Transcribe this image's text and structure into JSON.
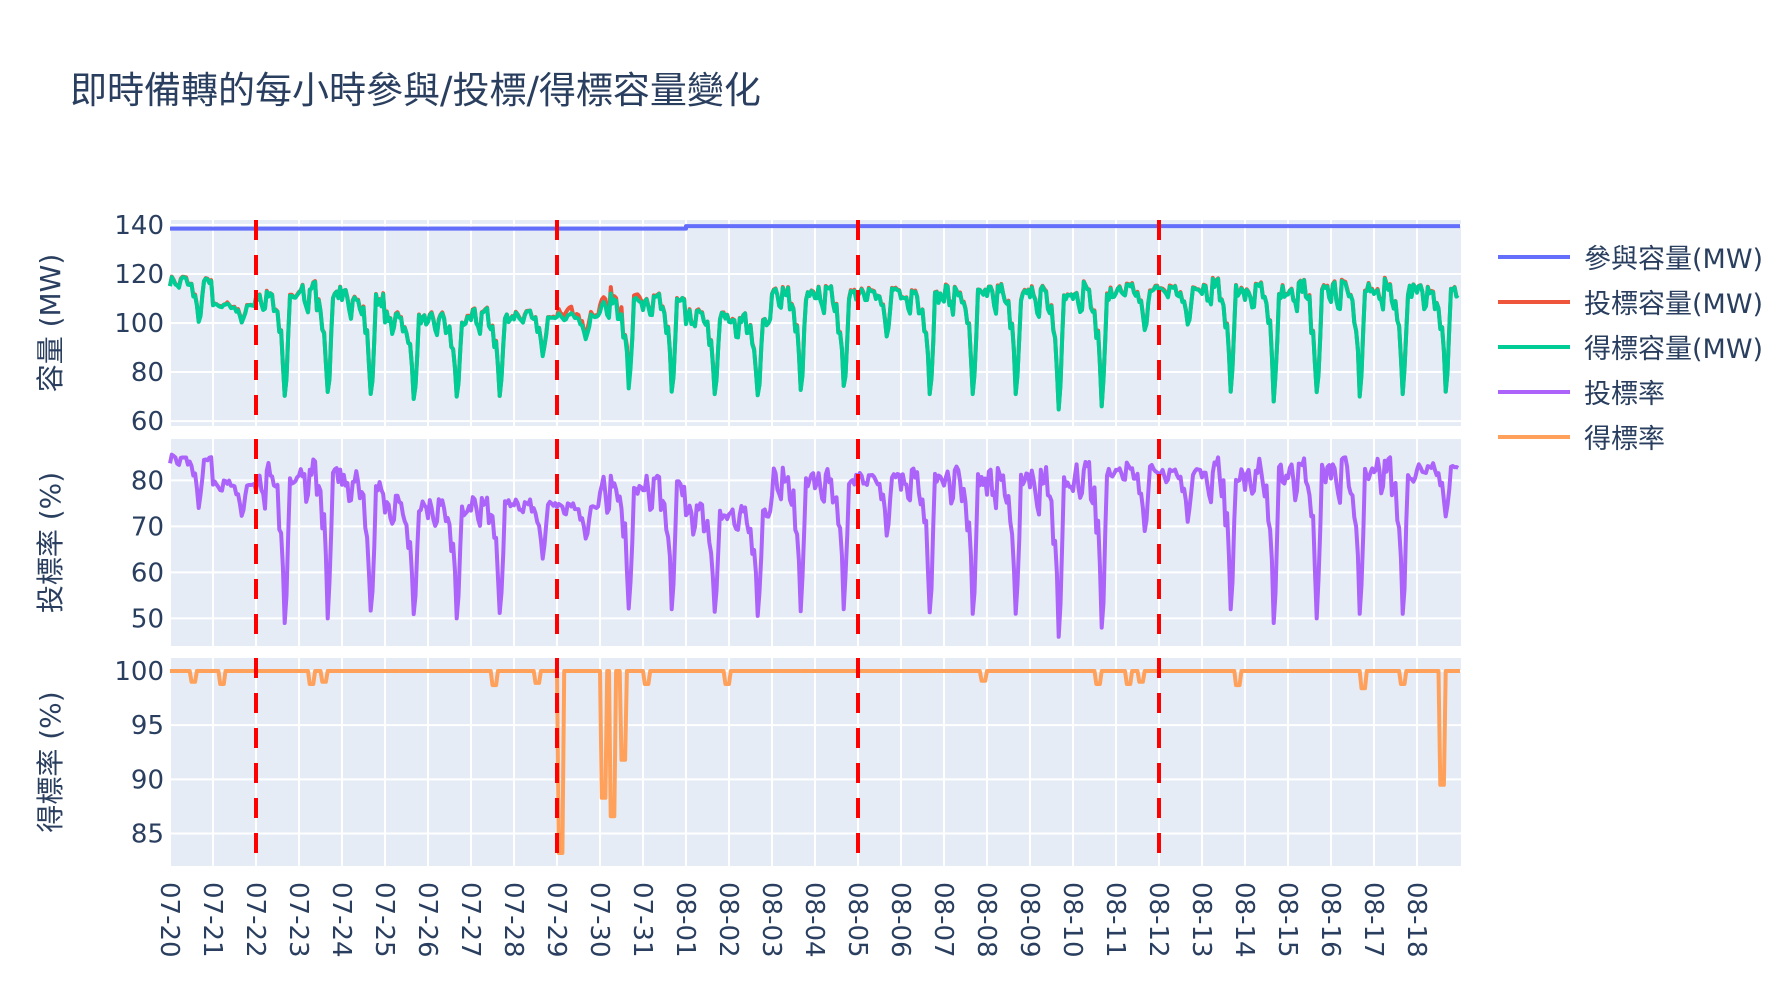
{
  "title": "即時備轉的每小時參與/投標/得標容量變化",
  "colors": {
    "participation": "#636efa",
    "bid": "#ef553b",
    "awarded": "#00cc96",
    "bid_rate": "#ab63fa",
    "award_rate": "#ffa15a",
    "vline": "#ff0000",
    "plot_bg": "#e5ecf6",
    "grid": "#ffffff"
  },
  "legend": [
    {
      "label": "參與容量(MW)",
      "color_key": "participation"
    },
    {
      "label": "投標容量(MW)",
      "color_key": "bid"
    },
    {
      "label": "得標容量(MW)",
      "color_key": "awarded"
    },
    {
      "label": "投標率",
      "color_key": "bid_rate"
    },
    {
      "label": "得標率",
      "color_key": "award_rate"
    }
  ],
  "chart_data": [
    {
      "type": "line",
      "panel": "top",
      "title": "即時備轉的每小時參與/投標/得標容量變化",
      "ylabel": "容量 (MW)",
      "ylim": [
        58,
        142
      ],
      "yticks": [
        60,
        80,
        100,
        120,
        140
      ],
      "xlabel": "",
      "x_tick_labels": [
        "07-20",
        "07-21",
        "07-22",
        "07-23",
        "07-24",
        "07-25",
        "07-26",
        "07-27",
        "07-28",
        "07-29",
        "07-30",
        "07-31",
        "08-01",
        "08-02",
        "08-03",
        "08-04",
        "08-05",
        "08-06",
        "08-07",
        "08-08",
        "08-09",
        "08-10",
        "08-11",
        "08-12",
        "08-13",
        "08-14",
        "08-15",
        "08-16",
        "08-17",
        "08-18"
      ],
      "vertical_dashed_lines": [
        "07-22",
        "07-29",
        "08-05",
        "08-12"
      ],
      "series": [
        {
          "name": "參與容量(MW)",
          "daily_values": [
            138.5,
            138.5,
            138.5,
            138.5,
            138.5,
            138.5,
            138.5,
            138.5,
            138.5,
            138.5,
            138.5,
            138.5,
            139.5,
            139.5,
            139.5,
            139.5,
            139.5,
            139.5,
            139.5,
            139.5,
            139.5,
            139.5,
            139.5,
            139.5,
            139.5,
            139.5,
            139.5,
            139.5,
            139.5,
            139.5
          ]
        },
        {
          "name": "投標容量(MW)",
          "note": "nearly identical to 得標容量, slightly higher on 07-29/07-30"
        },
        {
          "name": "得標容量(MW)",
          "daily_peak": [
            119,
            108,
            115,
            117,
            114,
            105,
            104,
            106,
            105,
            104,
            112,
            112,
            106,
            104,
            116,
            115,
            115,
            115,
            116,
            116,
            116,
            117,
            116,
            115,
            118,
            118,
            118,
            118,
            118,
            117
          ],
          "daily_min": [
            100,
            100,
            68,
            69,
            69,
            69,
            69,
            70,
            86,
            93,
            72,
            72,
            71,
            70,
            71,
            72,
            94,
            71,
            71,
            71,
            64,
            66,
            96,
            99,
            72,
            68,
            69,
            70,
            71,
            72
          ]
        }
      ]
    },
    {
      "type": "line",
      "panel": "middle",
      "ylabel": "投標率 (%)",
      "ylim": [
        44,
        89
      ],
      "yticks": [
        50,
        60,
        70,
        80
      ],
      "series": [
        {
          "name": "投標率",
          "daily_peak": [
            86,
            80,
            84,
            85,
            82,
            77,
            76,
            77,
            76,
            75,
            81,
            81,
            75,
            75,
            83,
            83,
            82,
            83,
            83,
            83,
            83,
            84,
            84,
            83,
            85,
            85,
            85,
            85,
            85,
            84
          ],
          "daily_min": [
            74,
            72,
            49,
            50,
            50,
            50,
            50,
            51,
            63,
            67,
            52,
            52,
            51,
            50,
            51,
            52,
            68,
            51,
            51,
            51,
            46,
            48,
            69,
            71,
            52,
            49,
            50,
            51,
            51,
            72
          ]
        }
      ]
    },
    {
      "type": "line",
      "panel": "bottom",
      "ylabel": "得標率 (%)",
      "ylim": [
        82,
        101.2
      ],
      "yticks": [
        85,
        90,
        95,
        100
      ],
      "series": [
        {
          "name": "得標率",
          "baseline": 100,
          "dips": [
            {
              "day": 0.55,
              "value": 99.0
            },
            {
              "day": 1.2,
              "value": 98.8
            },
            {
              "day": 3.3,
              "value": 98.8
            },
            {
              "day": 3.6,
              "value": 99.0
            },
            {
              "day": 7.55,
              "value": 98.7
            },
            {
              "day": 8.55,
              "value": 98.9
            },
            {
              "day": 9.1,
              "value": 83.2
            },
            {
              "day": 10.1,
              "value": 88.3
            },
            {
              "day": 10.3,
              "value": 86.6
            },
            {
              "day": 10.55,
              "value": 91.8
            },
            {
              "day": 11.1,
              "value": 98.8
            },
            {
              "day": 12.95,
              "value": 98.8
            },
            {
              "day": 18.9,
              "value": 99.1
            },
            {
              "day": 21.6,
              "value": 98.8
            },
            {
              "day": 22.3,
              "value": 98.8
            },
            {
              "day": 22.6,
              "value": 99.0
            },
            {
              "day": 24.85,
              "value": 98.7
            },
            {
              "day": 27.75,
              "value": 98.4
            },
            {
              "day": 28.65,
              "value": 98.8
            },
            {
              "day": 29.6,
              "value": 89.5
            }
          ]
        }
      ]
    }
  ]
}
